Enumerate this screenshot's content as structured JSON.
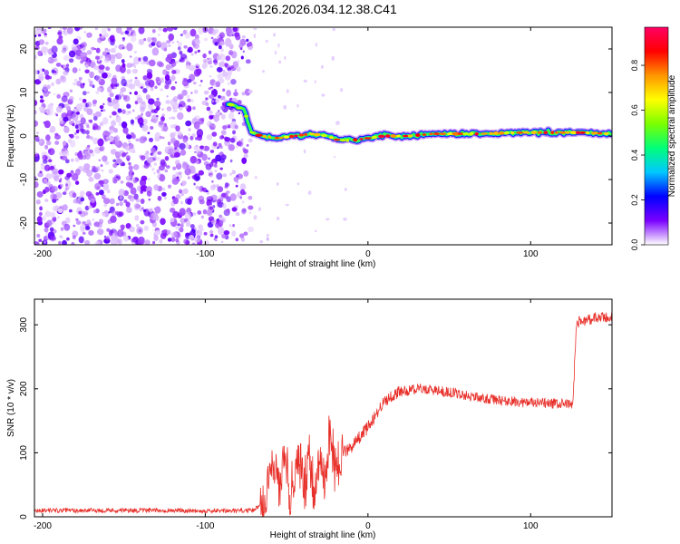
{
  "title": "S126.2026.034.12.38.C41",
  "chart_data": [
    {
      "type": "heatmap",
      "title": "S126.2026.034.12.38.C41",
      "xlabel": "Height of straight line (km)",
      "ylabel": "Frequency (Hz)",
      "xlim": [
        -205,
        150
      ],
      "ylim": [
        -25,
        25
      ],
      "xticks": [
        -200,
        -100,
        0,
        100
      ],
      "xtick_labels": [
        "-200",
        "-100",
        "0",
        "100"
      ],
      "yticks": [
        -20,
        -10,
        0,
        10,
        20
      ],
      "ytick_labels": [
        "-20",
        "-10",
        "0",
        "10",
        "20"
      ],
      "noise_region_x": [
        -205,
        -72
      ],
      "signal_track": [
        {
          "x": -86,
          "y": 7.5
        },
        {
          "x": -80,
          "y": 6.5
        },
        {
          "x": -76,
          "y": 6
        },
        {
          "x": -72,
          "y": 1
        },
        {
          "x": -66,
          "y": 0
        },
        {
          "x": -55,
          "y": -0.5
        },
        {
          "x": -45,
          "y": 0
        },
        {
          "x": -35,
          "y": 0.5
        },
        {
          "x": -25,
          "y": 0
        },
        {
          "x": -18,
          "y": -1
        },
        {
          "x": -10,
          "y": -1
        },
        {
          "x": 0,
          "y": -0.5
        },
        {
          "x": 10,
          "y": 0
        },
        {
          "x": 25,
          "y": 0
        },
        {
          "x": 40,
          "y": 0.5
        },
        {
          "x": 55,
          "y": 0.5
        },
        {
          "x": 70,
          "y": 0.5
        },
        {
          "x": 85,
          "y": 0.7
        },
        {
          "x": 100,
          "y": 0.8
        },
        {
          "x": 115,
          "y": 0.8
        },
        {
          "x": 130,
          "y": 0.8
        },
        {
          "x": 150,
          "y": 0.5
        }
      ],
      "colorbar": {
        "label": "Normalized spectral amplitude",
        "range": [
          0,
          0.97
        ],
        "ticks": [
          0.0,
          0.2,
          0.4,
          0.6,
          0.8
        ],
        "tick_labels": [
          "0.0",
          "0.2",
          "0.4",
          "0.6",
          "0.8"
        ],
        "stops": [
          "#ffffff",
          "#7a00ff",
          "#0000ff",
          "#00c8ff",
          "#00ff7a",
          "#7aff00",
          "#ffff00",
          "#ff9600",
          "#ff0000",
          "#ff0064"
        ]
      }
    },
    {
      "type": "line",
      "xlabel": "Height of straight line (km)",
      "ylabel": "SNR (10 * v/v)",
      "xlim": [
        -205,
        150
      ],
      "ylim": [
        0,
        340
      ],
      "xticks": [
        -200,
        -100,
        0,
        100
      ],
      "xtick_labels": [
        "-200",
        "-100",
        "0",
        "100"
      ],
      "yticks": [
        0,
        100,
        200,
        300
      ],
      "ytick_labels": [
        "0",
        "100",
        "200",
        "300"
      ],
      "series": [
        {
          "name": "SNR",
          "color": "#e8302a",
          "x": [
            -205,
            -180,
            -150,
            -120,
            -90,
            -70,
            -63,
            -60,
            -57,
            -54,
            -51,
            -48,
            -45,
            -42,
            -39,
            -36,
            -33,
            -30,
            -27,
            -24,
            -20,
            -15,
            -10,
            -5,
            0,
            5,
            10,
            15,
            20,
            25,
            30,
            35,
            40,
            45,
            50,
            60,
            70,
            80,
            90,
            100,
            110,
            120,
            126,
            128,
            130,
            135,
            140,
            150
          ],
          "y": [
            10,
            10,
            10,
            10,
            9,
            10,
            30,
            95,
            70,
            40,
            110,
            25,
            60,
            90,
            45,
            100,
            30,
            95,
            50,
            120,
            80,
            100,
            110,
            125,
            140,
            160,
            180,
            190,
            195,
            198,
            200,
            200,
            198,
            196,
            195,
            190,
            185,
            182,
            180,
            178,
            177,
            176,
            175,
            300,
            305,
            308,
            310,
            312
          ]
        }
      ]
    }
  ]
}
